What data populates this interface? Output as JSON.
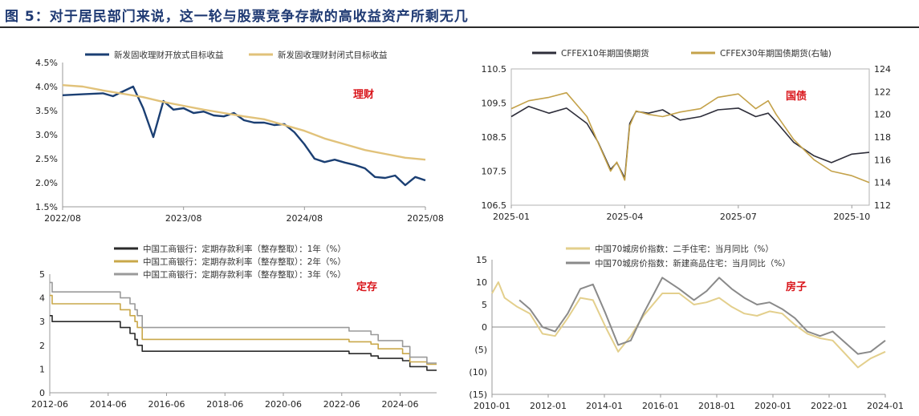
{
  "figure_title": "图  5：对于居民部门来说，这一轮与股票竞争存款的高收益资产所剩无几",
  "chart_data": [
    {
      "id": "wealth",
      "type": "line",
      "annotation": "理财",
      "x_ticks": [
        "2022/08",
        "2023/08",
        "2024/08",
        "2025/08"
      ],
      "x_range": [
        "2022-08",
        "2025-08"
      ],
      "y_ticks": [
        "1.5%",
        "2.0%",
        "2.5%",
        "3.0%",
        "3.5%",
        "4.0%",
        "4.5%"
      ],
      "ylim": [
        1.5,
        4.5
      ],
      "grid": false,
      "legend_position": "top",
      "series": [
        {
          "name": "新发固收理财开放式目标收益",
          "color": "#1b3f73",
          "points": [
            [
              "2022-08",
              3.82
            ],
            [
              "2022-10",
              3.84
            ],
            [
              "2022-12",
              3.86
            ],
            [
              "2023-01",
              3.8
            ],
            [
              "2023-02",
              3.9
            ],
            [
              "2023-03",
              4.0
            ],
            [
              "2023-04",
              3.55
            ],
            [
              "2023-05",
              2.95
            ],
            [
              "2023-06",
              3.7
            ],
            [
              "2023-07",
              3.52
            ],
            [
              "2023-08",
              3.55
            ],
            [
              "2023-09",
              3.45
            ],
            [
              "2023-10",
              3.48
            ],
            [
              "2023-11",
              3.4
            ],
            [
              "2023-12",
              3.38
            ],
            [
              "2024-01",
              3.45
            ],
            [
              "2024-02",
              3.3
            ],
            [
              "2024-03",
              3.25
            ],
            [
              "2024-04",
              3.25
            ],
            [
              "2024-05",
              3.2
            ],
            [
              "2024-06",
              3.22
            ],
            [
              "2024-07",
              3.05
            ],
            [
              "2024-08",
              2.8
            ],
            [
              "2024-09",
              2.5
            ],
            [
              "2024-10",
              2.43
            ],
            [
              "2024-11",
              2.48
            ],
            [
              "2024-12",
              2.42
            ],
            [
              "2025-01",
              2.37
            ],
            [
              "2025-02",
              2.3
            ],
            [
              "2025-03",
              2.12
            ],
            [
              "2025-04",
              2.1
            ],
            [
              "2025-05",
              2.15
            ],
            [
              "2025-06",
              1.95
            ],
            [
              "2025-07",
              2.12
            ],
            [
              "2025-08",
              2.05
            ]
          ]
        },
        {
          "name": "新发固收理财封闭式目标收益",
          "color": "#e1c27a",
          "points": [
            [
              "2022-08",
              4.03
            ],
            [
              "2022-10",
              4.0
            ],
            [
              "2022-12",
              3.92
            ],
            [
              "2023-02",
              3.85
            ],
            [
              "2023-04",
              3.78
            ],
            [
              "2023-06",
              3.68
            ],
            [
              "2023-08",
              3.6
            ],
            [
              "2023-10",
              3.52
            ],
            [
              "2023-12",
              3.45
            ],
            [
              "2024-02",
              3.38
            ],
            [
              "2024-04",
              3.32
            ],
            [
              "2024-06",
              3.2
            ],
            [
              "2024-08",
              3.08
            ],
            [
              "2024-10",
              2.92
            ],
            [
              "2024-12",
              2.8
            ],
            [
              "2025-02",
              2.68
            ],
            [
              "2025-04",
              2.6
            ],
            [
              "2025-06",
              2.52
            ],
            [
              "2025-08",
              2.48
            ]
          ]
        }
      ]
    },
    {
      "id": "bond",
      "type": "line",
      "annotation": "国债",
      "x_ticks": [
        "2025-01",
        "2025-04",
        "2025-07",
        "2025-10"
      ],
      "x_range": [
        "2025-01-01",
        "2025-10-15"
      ],
      "y_ticks_left": [
        "106.5",
        "107.5",
        "108.5",
        "109.5",
        "110.5"
      ],
      "ylim_left": [
        106.5,
        110.5
      ],
      "y_ticks_right": [
        "112",
        "114",
        "116",
        "118",
        "120",
        "122",
        "124"
      ],
      "ylim_right": [
        112,
        124
      ],
      "grid": false,
      "legend_position": "top",
      "series": [
        {
          "name": "CFFEX10年期国债期货",
          "color": "#2e2e3a",
          "axis": "left",
          "points": [
            [
              "2025-01-01",
              109.1
            ],
            [
              "2025-01-15",
              109.4
            ],
            [
              "2025-02-01",
              109.2
            ],
            [
              "2025-02-15",
              109.35
            ],
            [
              "2025-03-01",
              108.9
            ],
            [
              "2025-03-10",
              108.35
            ],
            [
              "2025-03-20",
              107.55
            ],
            [
              "2025-03-25",
              107.75
            ],
            [
              "2025-04-01",
              107.3
            ],
            [
              "2025-04-05",
              108.9
            ],
            [
              "2025-04-10",
              109.25
            ],
            [
              "2025-04-20",
              109.2
            ],
            [
              "2025-05-01",
              109.3
            ],
            [
              "2025-05-15",
              109.0
            ],
            [
              "2025-06-01",
              109.1
            ],
            [
              "2025-06-15",
              109.3
            ],
            [
              "2025-07-01",
              109.35
            ],
            [
              "2025-07-15",
              109.1
            ],
            [
              "2025-07-25",
              109.2
            ],
            [
              "2025-08-01",
              108.95
            ],
            [
              "2025-08-15",
              108.35
            ],
            [
              "2025-09-01",
              107.95
            ],
            [
              "2025-09-15",
              107.75
            ],
            [
              "2025-10-01",
              108.0
            ],
            [
              "2025-10-15",
              108.05
            ]
          ]
        },
        {
          "name": "CFFEX30年期国债期货(右轴)",
          "color": "#c4a24a",
          "axis": "right",
          "points": [
            [
              "2025-01-01",
              120.5
            ],
            [
              "2025-01-15",
              121.2
            ],
            [
              "2025-02-01",
              121.5
            ],
            [
              "2025-02-15",
              121.9
            ],
            [
              "2025-03-01",
              119.8
            ],
            [
              "2025-03-10",
              117.5
            ],
            [
              "2025-03-20",
              115.0
            ],
            [
              "2025-03-25",
              115.8
            ],
            [
              "2025-04-01",
              114.2
            ],
            [
              "2025-04-05",
              119.0
            ],
            [
              "2025-04-10",
              120.3
            ],
            [
              "2025-04-20",
              120.0
            ],
            [
              "2025-05-01",
              119.8
            ],
            [
              "2025-05-15",
              120.2
            ],
            [
              "2025-06-01",
              120.5
            ],
            [
              "2025-06-15",
              121.5
            ],
            [
              "2025-07-01",
              121.8
            ],
            [
              "2025-07-15",
              120.5
            ],
            [
              "2025-07-25",
              121.2
            ],
            [
              "2025-08-01",
              120.0
            ],
            [
              "2025-08-15",
              117.8
            ],
            [
              "2025-09-01",
              116.0
            ],
            [
              "2025-09-15",
              115.0
            ],
            [
              "2025-10-01",
              114.6
            ],
            [
              "2025-10-15",
              114.0
            ]
          ]
        }
      ]
    },
    {
      "id": "deposit",
      "type": "line",
      "annotation": "定存",
      "x_ticks": [
        "2012-06",
        "2014-06",
        "2016-06",
        "2018-06",
        "2020-06",
        "2022-06",
        "2024-06"
      ],
      "x_range": [
        "2012-06",
        "2025-09"
      ],
      "y_ticks": [
        "0",
        "1",
        "2",
        "3",
        "4",
        "5"
      ],
      "ylim": [
        0,
        5
      ],
      "grid": false,
      "legend_position": "top",
      "series": [
        {
          "name": "中国工商银行：定期存款利率（整存整取）：1年（%）",
          "color": "#2b2b2b",
          "points": [
            [
              "2012-06",
              3.25
            ],
            [
              "2012-07",
              3.0
            ],
            [
              "2014-11",
              2.75
            ],
            [
              "2015-03",
              2.5
            ],
            [
              "2015-05",
              2.25
            ],
            [
              "2015-06",
              2.0
            ],
            [
              "2015-08",
              1.75
            ],
            [
              "2022-09",
              1.65
            ],
            [
              "2023-06",
              1.55
            ],
            [
              "2023-09",
              1.45
            ],
            [
              "2024-07",
              1.35
            ],
            [
              "2024-10",
              1.1
            ],
            [
              "2025-05",
              0.95
            ],
            [
              "2025-09",
              0.95
            ]
          ]
        },
        {
          "name": "中国工商银行：定期存款利率（整存整取）：2年（%）",
          "color": "#c9a84a",
          "points": [
            [
              "2012-06",
              4.1
            ],
            [
              "2012-07",
              3.75
            ],
            [
              "2014-11",
              3.5
            ],
            [
              "2015-03",
              3.25
            ],
            [
              "2015-05",
              3.0
            ],
            [
              "2015-06",
              2.75
            ],
            [
              "2015-08",
              2.25
            ],
            [
              "2022-09",
              2.15
            ],
            [
              "2023-06",
              2.05
            ],
            [
              "2023-09",
              1.85
            ],
            [
              "2024-07",
              1.65
            ],
            [
              "2024-10",
              1.3
            ],
            [
              "2025-05",
              1.2
            ],
            [
              "2025-09",
              1.2
            ]
          ]
        },
        {
          "name": "中国工商银行：定期存款利率（整存整取）：3年（%）",
          "color": "#9a9a9a",
          "points": [
            [
              "2012-06",
              4.65
            ],
            [
              "2012-07",
              4.25
            ],
            [
              "2014-11",
              4.0
            ],
            [
              "2015-03",
              3.75
            ],
            [
              "2015-05",
              3.5
            ],
            [
              "2015-06",
              3.25
            ],
            [
              "2015-08",
              2.75
            ],
            [
              "2022-09",
              2.6
            ],
            [
              "2023-06",
              2.45
            ],
            [
              "2023-09",
              2.2
            ],
            [
              "2024-07",
              1.95
            ],
            [
              "2024-10",
              1.5
            ],
            [
              "2025-05",
              1.25
            ],
            [
              "2025-09",
              1.25
            ]
          ]
        }
      ]
    },
    {
      "id": "housing",
      "type": "line",
      "annotation": "房子",
      "x_ticks": [
        "2010-01",
        "2012-01",
        "2014-01",
        "2016-01",
        "2018-01",
        "2020-01",
        "2022-01",
        "2024-01"
      ],
      "x_range": [
        "2010-01",
        "2025-08"
      ],
      "y_ticks": [
        "(15)",
        "(10)",
        "(5)",
        "0",
        "5",
        "10",
        "15"
      ],
      "y_tick_values": [
        -15,
        -10,
        -5,
        0,
        5,
        10,
        15
      ],
      "ylim": [
        -15,
        15
      ],
      "grid": false,
      "legend_position": "top",
      "series": [
        {
          "name": "中国70城房价指数：二手住宅：当月同比（%）",
          "color": "#e3cf8c",
          "points": [
            [
              "2010-01",
              7.5
            ],
            [
              "2010-04",
              10.0
            ],
            [
              "2010-07",
              6.5
            ],
            [
              "2011-01",
              4.5
            ],
            [
              "2011-07",
              3.0
            ],
            [
              "2012-01",
              -1.5
            ],
            [
              "2012-07",
              -2.0
            ],
            [
              "2013-01",
              2.0
            ],
            [
              "2013-07",
              6.5
            ],
            [
              "2014-01",
              6.0
            ],
            [
              "2014-07",
              0.0
            ],
            [
              "2015-01",
              -5.5
            ],
            [
              "2015-07",
              -2.0
            ],
            [
              "2016-01",
              2.5
            ],
            [
              "2016-10",
              7.5
            ],
            [
              "2017-06",
              7.5
            ],
            [
              "2018-01",
              5.0
            ],
            [
              "2018-07",
              5.5
            ],
            [
              "2019-01",
              6.5
            ],
            [
              "2019-07",
              4.5
            ],
            [
              "2020-01",
              3.0
            ],
            [
              "2020-07",
              2.5
            ],
            [
              "2021-01",
              3.5
            ],
            [
              "2021-07",
              3.0
            ],
            [
              "2022-01",
              0.5
            ],
            [
              "2022-07",
              -1.5
            ],
            [
              "2023-01",
              -2.5
            ],
            [
              "2023-07",
              -3.0
            ],
            [
              "2024-01",
              -6.0
            ],
            [
              "2024-07",
              -9.0
            ],
            [
              "2025-01",
              -7.0
            ],
            [
              "2025-08",
              -5.5
            ]
          ]
        },
        {
          "name": "中国70城房价指数：新建商品住宅：当月同比（%）",
          "color": "#8a8a8a",
          "points": [
            [
              "2011-02",
              6.0
            ],
            [
              "2011-07",
              4.0
            ],
            [
              "2012-01",
              0.0
            ],
            [
              "2012-07",
              -1.0
            ],
            [
              "2013-01",
              3.0
            ],
            [
              "2013-07",
              8.5
            ],
            [
              "2014-01",
              9.5
            ],
            [
              "2014-07",
              3.0
            ],
            [
              "2015-01",
              -4.0
            ],
            [
              "2015-07",
              -3.0
            ],
            [
              "2016-01",
              3.0
            ],
            [
              "2016-10",
              11.0
            ],
            [
              "2017-06",
              8.5
            ],
            [
              "2018-01",
              6.0
            ],
            [
              "2018-07",
              8.0
            ],
            [
              "2019-01",
              11.0
            ],
            [
              "2019-07",
              8.5
            ],
            [
              "2020-01",
              6.5
            ],
            [
              "2020-07",
              5.0
            ],
            [
              "2021-01",
              5.5
            ],
            [
              "2021-07",
              4.0
            ],
            [
              "2022-01",
              2.0
            ],
            [
              "2022-07",
              -1.0
            ],
            [
              "2023-01",
              -2.0
            ],
            [
              "2023-07",
              -1.0
            ],
            [
              "2024-01",
              -3.5
            ],
            [
              "2024-07",
              -6.0
            ],
            [
              "2025-01",
              -5.5
            ],
            [
              "2025-08",
              -3.0
            ]
          ]
        }
      ]
    }
  ]
}
